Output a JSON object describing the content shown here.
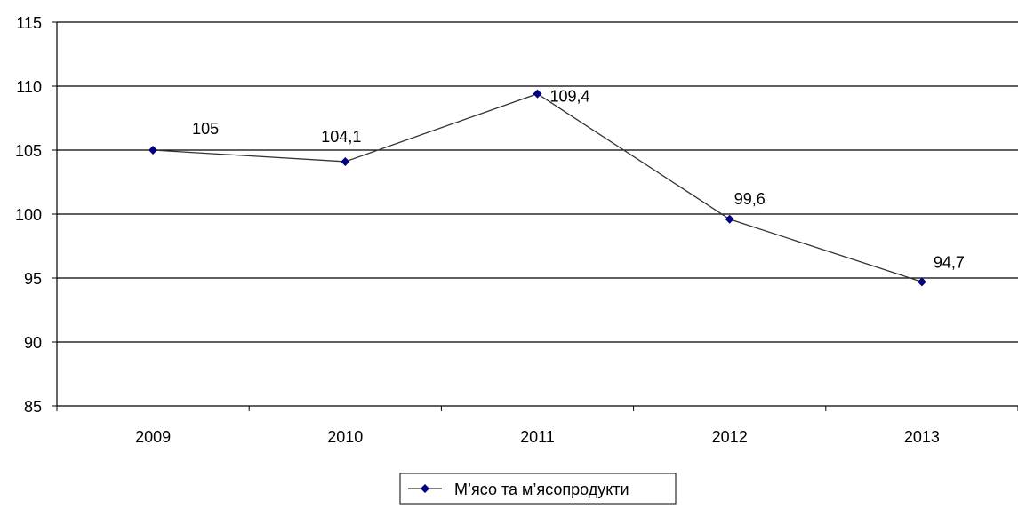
{
  "chart_data": {
    "type": "line",
    "title": "",
    "xlabel": "",
    "ylabel": "",
    "categories": [
      "2009",
      "2010",
      "2011",
      "2012",
      "2013"
    ],
    "series": [
      {
        "name": "М’ясо та м’ясопродукти",
        "values": [
          105,
          104.1,
          109.4,
          99.6,
          94.7
        ],
        "value_labels": [
          "105",
          "104,1",
          "109,4",
          "99,6",
          "94,7"
        ],
        "color": "#000080",
        "line_color": "#333333",
        "marker": "diamond"
      }
    ],
    "ylim": [
      85,
      115
    ],
    "ytick_step": 5,
    "y_tick_labels": [
      "85",
      "90",
      "95",
      "100",
      "105",
      "110",
      "115"
    ],
    "grid": true,
    "legend_position": "bottom-center"
  }
}
